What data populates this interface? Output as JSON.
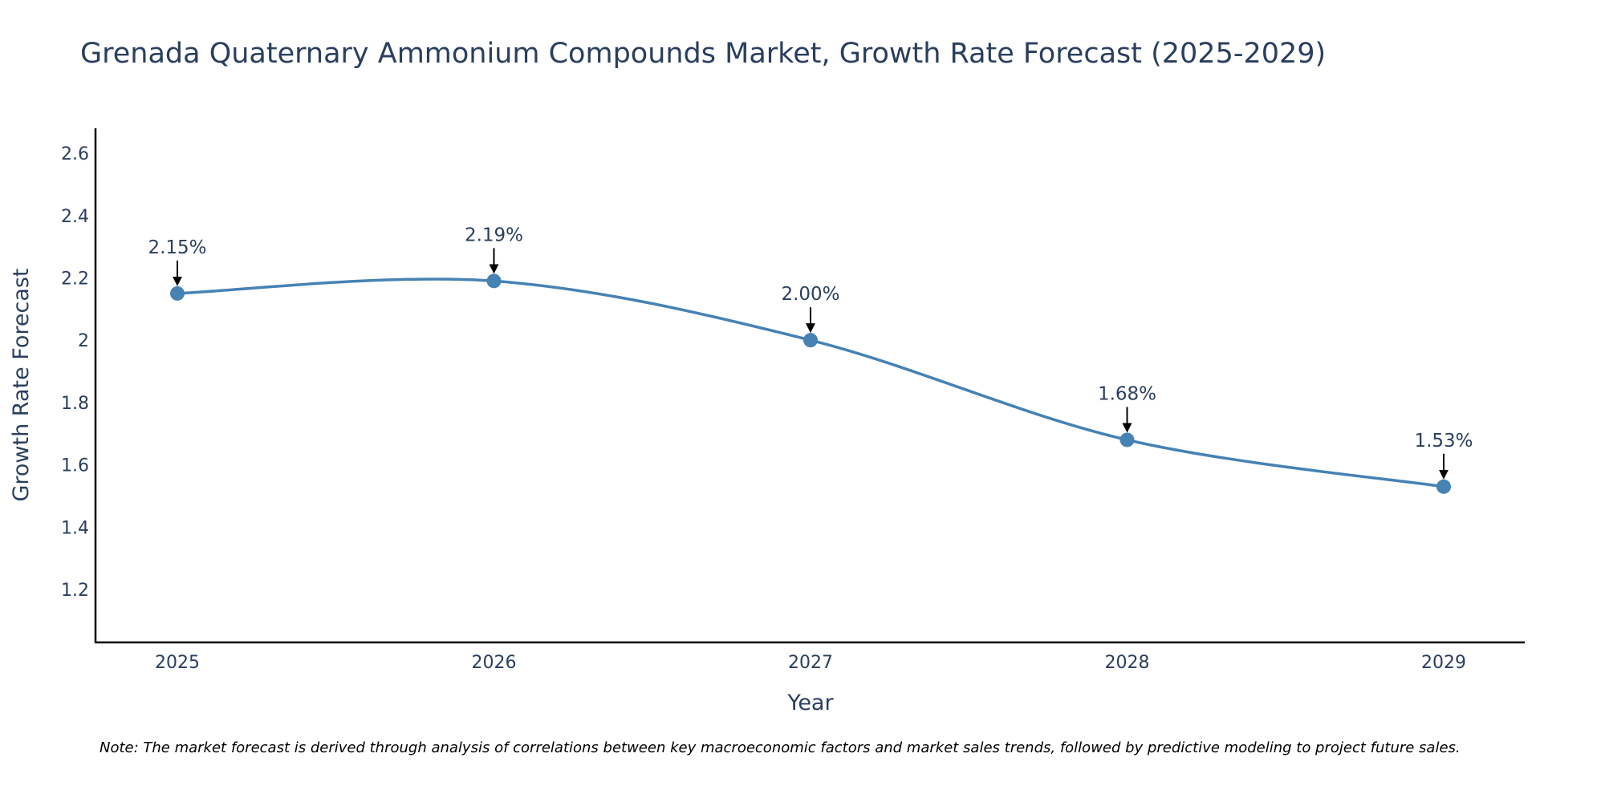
{
  "chart_data": {
    "type": "line",
    "title": "Grenada Quaternary Ammonium Compounds Market, Growth Rate Forecast (2025-2029)",
    "xlabel": "Year",
    "ylabel": "Growth Rate Forecast",
    "categories": [
      "2025",
      "2026",
      "2027",
      "2028",
      "2029"
    ],
    "series": [
      {
        "name": "Growth Rate Forecast",
        "values": [
          2.15,
          2.19,
          2.0,
          1.68,
          1.53
        ],
        "labels": [
          "2.15%",
          "2.19%",
          "2.00%",
          "1.68%",
          "1.53%"
        ],
        "color": "#4682b4"
      }
    ],
    "ylim": [
      1.03,
      2.68
    ],
    "yticks": [
      1.2,
      1.4,
      1.6,
      1.8,
      2,
      2.2,
      2.4,
      2.6
    ],
    "ytick_labels": [
      "1.2",
      "1.4",
      "1.6",
      "1.8",
      "2",
      "2.2",
      "2.4",
      "2.6"
    ],
    "grid": false,
    "line_shape": "spline",
    "annotation_arrow_color": "#000000",
    "note": "Note: The market forecast is derived through analysis of correlations between key macroeconomic factors and market sales trends, followed by predictive modeling to project future sales."
  }
}
